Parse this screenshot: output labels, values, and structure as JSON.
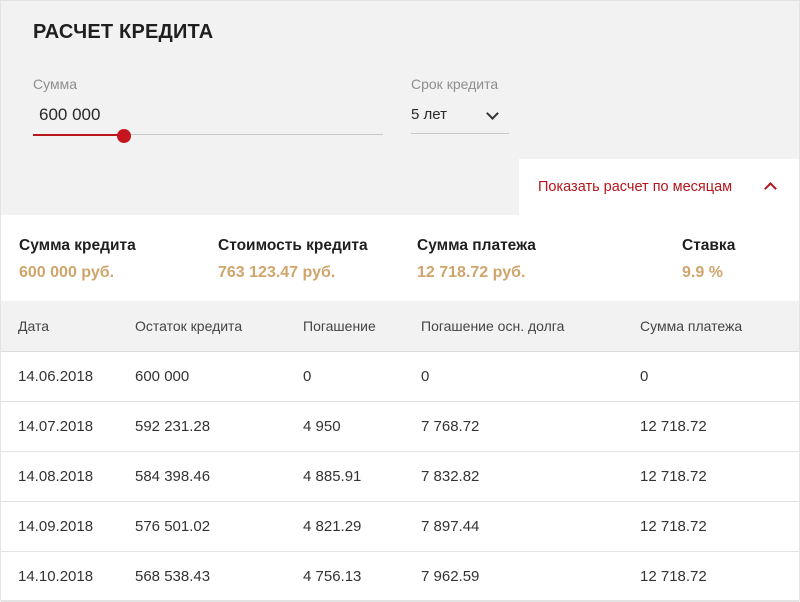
{
  "calculator": {
    "title": "РАСЧЕТ КРЕДИТА",
    "sum": {
      "label": "Сумма",
      "value": "600 000",
      "slider_level": 0.26
    },
    "term": {
      "label": "Срок кредита",
      "value": "5 лет"
    },
    "toggle_label": "Показать расчет по месяцам"
  },
  "summary": [
    {
      "label": "Сумма кредита",
      "value": "600 000 руб."
    },
    {
      "label": "Стоимость кредита",
      "value": "763 123.47 руб."
    },
    {
      "label": "Сумма платежа",
      "value": "12 718.72 руб."
    },
    {
      "label": "Ставка",
      "value": "9.9 %"
    }
  ],
  "schedule": {
    "headers": [
      "Дата",
      "Остаток кредита",
      "Погашение",
      "Погашение осн. долга",
      "Сумма платежа"
    ],
    "rows": [
      [
        "14.06.2018",
        "600 000",
        "0",
        "0",
        "0"
      ],
      [
        "14.07.2018",
        "592 231.28",
        "4 950",
        "7 768.72",
        "12 718.72"
      ],
      [
        "14.08.2018",
        "584 398.46",
        "4 885.91",
        "7 832.82",
        "12 718.72"
      ],
      [
        "14.09.2018",
        "576 501.02",
        "4 821.29",
        "7 897.44",
        "12 718.72"
      ],
      [
        "14.10.2018",
        "568 538.43",
        "4 756.13",
        "7 962.59",
        "12 718.72"
      ]
    ]
  },
  "colors": {
    "accent": "#b3151b",
    "highlight": "#d0a56c",
    "panel": "#f2f2f2"
  }
}
